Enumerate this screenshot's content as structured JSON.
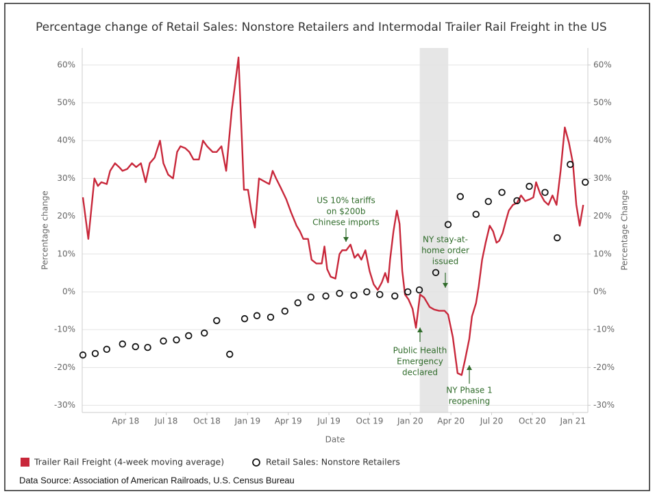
{
  "chart_data": {
    "type": "line",
    "title": "Percentage change of Retail Sales: Nonstore Retailers and Intermodal Trailer Rail Freight in the US",
    "x_label": "Date",
    "y_label": "Percentage change",
    "y2_label": "Percentage Change",
    "source": "Data Source: Association of American Railroads, U.S. Census Bureau",
    "xlim": [
      -0.2,
      37.1
    ],
    "xticks": [
      {
        "value": 3,
        "label": "Apr 18"
      },
      {
        "value": 6,
        "label": "Jul 18"
      },
      {
        "value": 9,
        "label": "Oct 18"
      },
      {
        "value": 12,
        "label": "Jan 19"
      },
      {
        "value": 15,
        "label": "Apr 19"
      },
      {
        "value": 18,
        "label": "Jul 19"
      },
      {
        "value": 21,
        "label": "Oct 19"
      },
      {
        "value": 24,
        "label": "Jan 20"
      },
      {
        "value": 27,
        "label": "Apr 20"
      },
      {
        "value": 30,
        "label": "Jul 20"
      },
      {
        "value": 33,
        "label": "Oct 20"
      },
      {
        "value": 36,
        "label": "Jan 21"
      }
    ],
    "ylim": [
      -31.9,
      64.5
    ],
    "yticks": [
      {
        "value": -30,
        "label": "-30%"
      },
      {
        "value": -20,
        "label": "-20%"
      },
      {
        "value": -10,
        "label": "-10%"
      },
      {
        "value": 0,
        "label": "0%"
      },
      {
        "value": 10,
        "label": "10%"
      },
      {
        "value": 20,
        "label": "20%"
      },
      {
        "value": 30,
        "label": "30%"
      },
      {
        "value": 40,
        "label": "40%"
      },
      {
        "value": 50,
        "label": "50%"
      },
      {
        "value": 60,
        "label": "60%"
      }
    ],
    "y2lim": [
      -31.9,
      64.5
    ],
    "y2ticks": [
      {
        "value": -30,
        "label": "-30%"
      },
      {
        "value": -20,
        "label": "-20%"
      },
      {
        "value": -10,
        "label": "-10%"
      },
      {
        "value": 0,
        "label": "0%"
      },
      {
        "value": 10,
        "label": "10%"
      },
      {
        "value": 20,
        "label": "20%"
      },
      {
        "value": 30,
        "label": "30%"
      },
      {
        "value": 40,
        "label": "40%"
      },
      {
        "value": 50,
        "label": "50%"
      },
      {
        "value": 60,
        "label": "60%"
      }
    ],
    "grid": true,
    "highlight_x": [
      24.7,
      26.8
    ],
    "series": [
      {
        "name": "Trailer Rail Freight (4-week moving average)",
        "type": "line",
        "color": "#c8273a",
        "x": [
          -0.15,
          0.25,
          0.7,
          0.96,
          1.21,
          1.61,
          1.86,
          2.22,
          2.52,
          2.77,
          3.12,
          3.47,
          3.78,
          4.13,
          4.48,
          4.78,
          5.14,
          5.54,
          5.79,
          6.14,
          6.5,
          6.8,
          7.05,
          7.4,
          7.7,
          8.01,
          8.41,
          8.71,
          9.01,
          9.42,
          9.72,
          10.07,
          10.42,
          10.83,
          11.33,
          11.73,
          12.03,
          12.29,
          12.54,
          12.84,
          13.09,
          13.34,
          13.6,
          13.85,
          14.1,
          14.45,
          14.85,
          15.21,
          15.61,
          15.86,
          16.11,
          16.46,
          16.72,
          17.07,
          17.47,
          17.67,
          17.87,
          18.13,
          18.48,
          18.78,
          18.98,
          19.28,
          19.59,
          19.89,
          20.14,
          20.39,
          20.69,
          21.0,
          21.3,
          21.6,
          21.9,
          22.15,
          22.36,
          22.51,
          22.76,
          23.01,
          23.21,
          23.41,
          23.61,
          23.87,
          24.17,
          24.42,
          24.72,
          25.02,
          25.43,
          25.78,
          26.13,
          26.53,
          26.79,
          27.14,
          27.49,
          27.79,
          28.04,
          28.35,
          28.55,
          28.85,
          29.05,
          29.3,
          29.56,
          29.86,
          30.11,
          30.36,
          30.56,
          30.81,
          31.07,
          31.27,
          31.57,
          31.87,
          32.17,
          32.48,
          32.83,
          33.08,
          33.28,
          33.58,
          33.89,
          34.19,
          34.49,
          34.79,
          35.09,
          35.4,
          35.7,
          36.0,
          36.25,
          36.5,
          36.76
        ],
        "values": [
          25,
          14,
          30,
          28,
          29,
          28.5,
          32,
          34,
          33,
          32,
          32.5,
          34,
          33,
          34,
          29,
          34,
          35.5,
          40,
          34,
          31,
          30,
          37,
          38.5,
          38,
          37,
          35,
          35,
          40,
          38.5,
          37,
          37,
          38.5,
          32,
          48,
          62,
          27,
          27,
          21,
          17,
          30,
          29.5,
          29,
          28.5,
          32,
          30,
          27.5,
          24.5,
          21,
          17.5,
          16,
          14,
          14,
          8.5,
          7.5,
          7.5,
          12,
          6,
          4,
          3.5,
          10,
          11,
          11,
          12.5,
          9,
          10,
          8.5,
          11,
          5.5,
          2,
          0.5,
          2.5,
          5,
          2.5,
          8.5,
          16,
          21.5,
          18,
          5.5,
          -0.7,
          -2,
          -4.5,
          -9.5,
          -0.7,
          -1.5,
          -4,
          -4.7,
          -5,
          -5,
          -6,
          -12,
          -21.5,
          -22,
          -18,
          -12.5,
          -6.5,
          -3,
          1.5,
          8.5,
          13,
          17.5,
          16,
          13,
          13.5,
          15.5,
          19,
          21.5,
          23,
          23.5,
          25.5,
          24,
          24.5,
          25,
          29,
          26,
          24,
          23,
          25.5,
          23,
          32,
          43.5,
          39.5,
          34,
          23,
          17.5,
          23
        ]
      },
      {
        "name": "Retail Sales: Nonstore Retailers",
        "type": "scatter",
        "color": "#111111",
        "axis": "y2",
        "x": [
          -0.15,
          0.76,
          1.61,
          2.77,
          3.73,
          4.63,
          5.79,
          6.75,
          7.65,
          8.81,
          9.72,
          10.68,
          11.78,
          12.69,
          13.7,
          14.75,
          15.71,
          16.67,
          17.77,
          18.78,
          19.84,
          20.79,
          21.75,
          22.86,
          23.82,
          24.67,
          25.88,
          26.79,
          27.69,
          28.85,
          29.76,
          30.76,
          31.87,
          32.78,
          33.94,
          34.84,
          35.8,
          36.91
        ],
        "values": [
          -16.7,
          -16.3,
          -15.2,
          -13.8,
          -14.5,
          -14.7,
          -13,
          -12.7,
          -11.6,
          -10.9,
          -7.6,
          -16.5,
          -7.1,
          -6.3,
          -6.7,
          -5.1,
          -2.9,
          -1.4,
          -1.1,
          -0.4,
          -0.9,
          0,
          -0.7,
          -1.1,
          0,
          0.5,
          5.1,
          17.8,
          25.2,
          20.5,
          23.9,
          26.3,
          24.1,
          27.9,
          26.3,
          14.3,
          33.7,
          29
        ]
      }
    ],
    "annotations": [
      {
        "lines": [
          "US 10% tariffs",
          "on $200b",
          "Chinese imports"
        ]
      },
      {
        "lines": [
          "NY stay-at-",
          "home order",
          "issued"
        ]
      },
      {
        "lines": [
          "Public Health",
          "Emergency",
          "declared"
        ]
      },
      {
        "lines": [
          "NY Phase 1",
          "reopening"
        ]
      }
    ]
  }
}
